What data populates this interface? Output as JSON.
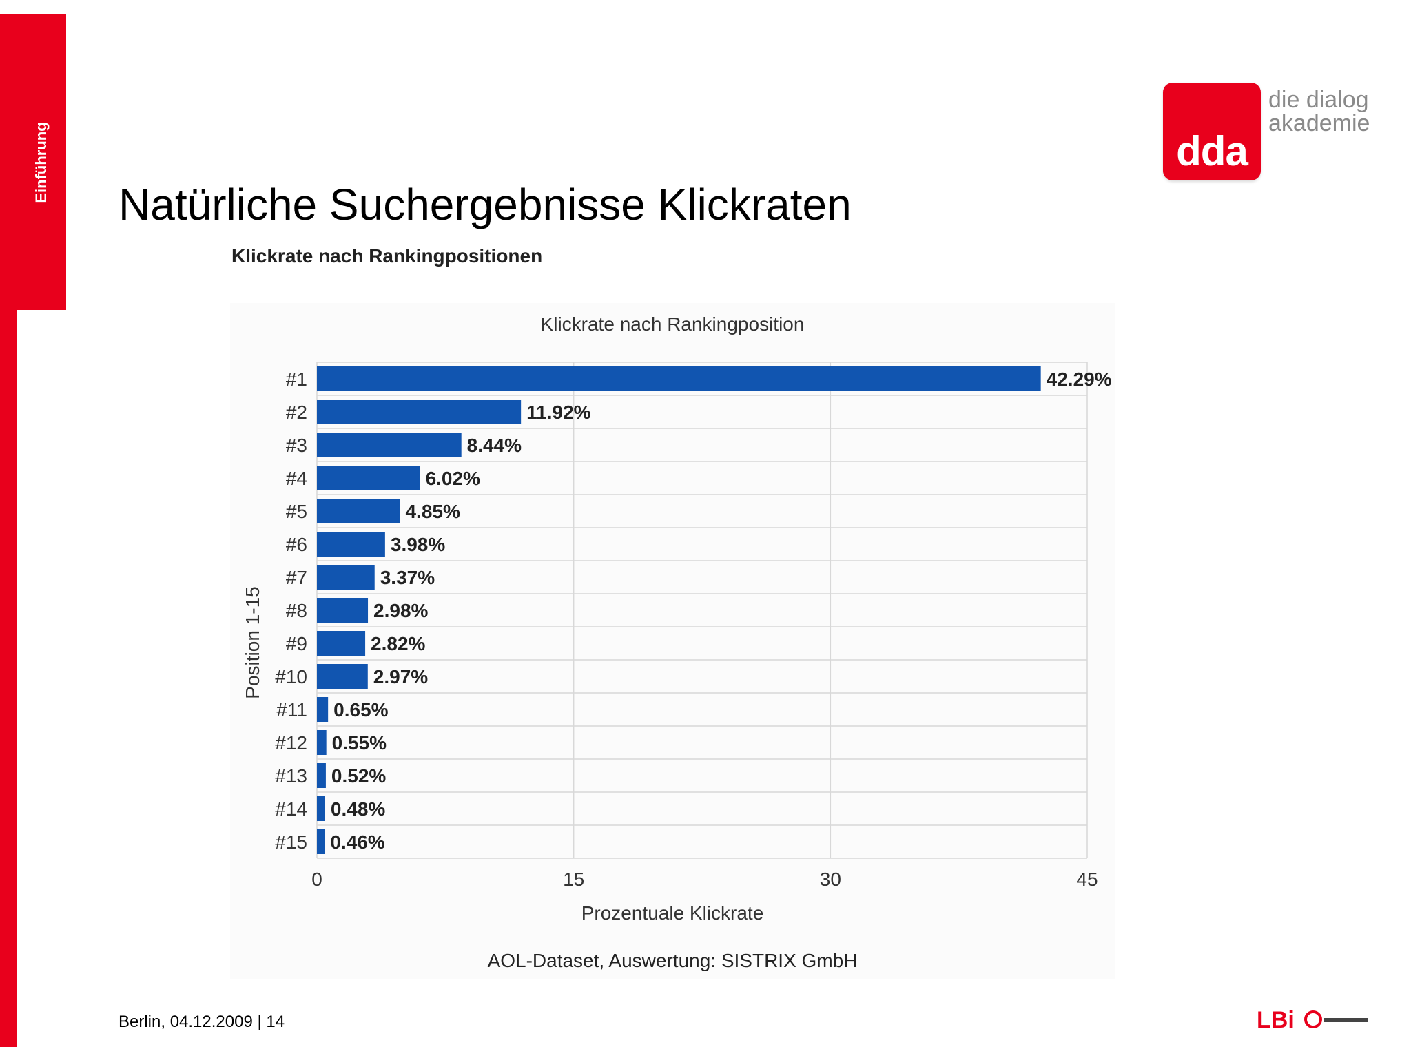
{
  "sidebar": {
    "section_label": "Einführung"
  },
  "logo": {
    "text": "dda",
    "claim_line1": "die dialog",
    "claim_line2": "akademie"
  },
  "slide": {
    "title": "Natürliche Suchergebnisse Klickraten",
    "chart_heading": "Klickrate nach Rankingpositionen"
  },
  "footer": {
    "text": "Berlin, 04.12.2009 | 14"
  },
  "partner": {
    "text": "LBi"
  },
  "colors": {
    "accent": "#e8001c",
    "bar": "#1155b0",
    "grid": "#d8d8d8"
  },
  "chart_data": {
    "type": "bar",
    "orientation": "horizontal",
    "title": "Klickrate nach Rankingposition",
    "xlabel": "Prozentuale Klickrate",
    "ylabel": "Position 1-15",
    "source": "AOL-Dataset, Auswertung: SISTRIX GmbH",
    "categories": [
      "#1",
      "#2",
      "#3",
      "#4",
      "#5",
      "#6",
      "#7",
      "#8",
      "#9",
      "#10",
      "#11",
      "#12",
      "#13",
      "#14",
      "#15"
    ],
    "values": [
      42.29,
      11.92,
      8.44,
      6.02,
      4.85,
      3.98,
      3.37,
      2.98,
      2.82,
      2.97,
      0.65,
      0.55,
      0.52,
      0.48,
      0.46
    ],
    "data_labels": [
      "42.29%",
      "11.92%",
      "8.44%",
      "6.02%",
      "4.85%",
      "3.98%",
      "3.37%",
      "2.98%",
      "2.82%",
      "2.97%",
      "0.65%",
      "0.55%",
      "0.52%",
      "0.48%",
      "0.46%"
    ],
    "xlim": [
      0,
      45
    ],
    "xticks": [
      "0",
      "15",
      "30",
      "45"
    ],
    "grid": true,
    "legend": "none"
  }
}
